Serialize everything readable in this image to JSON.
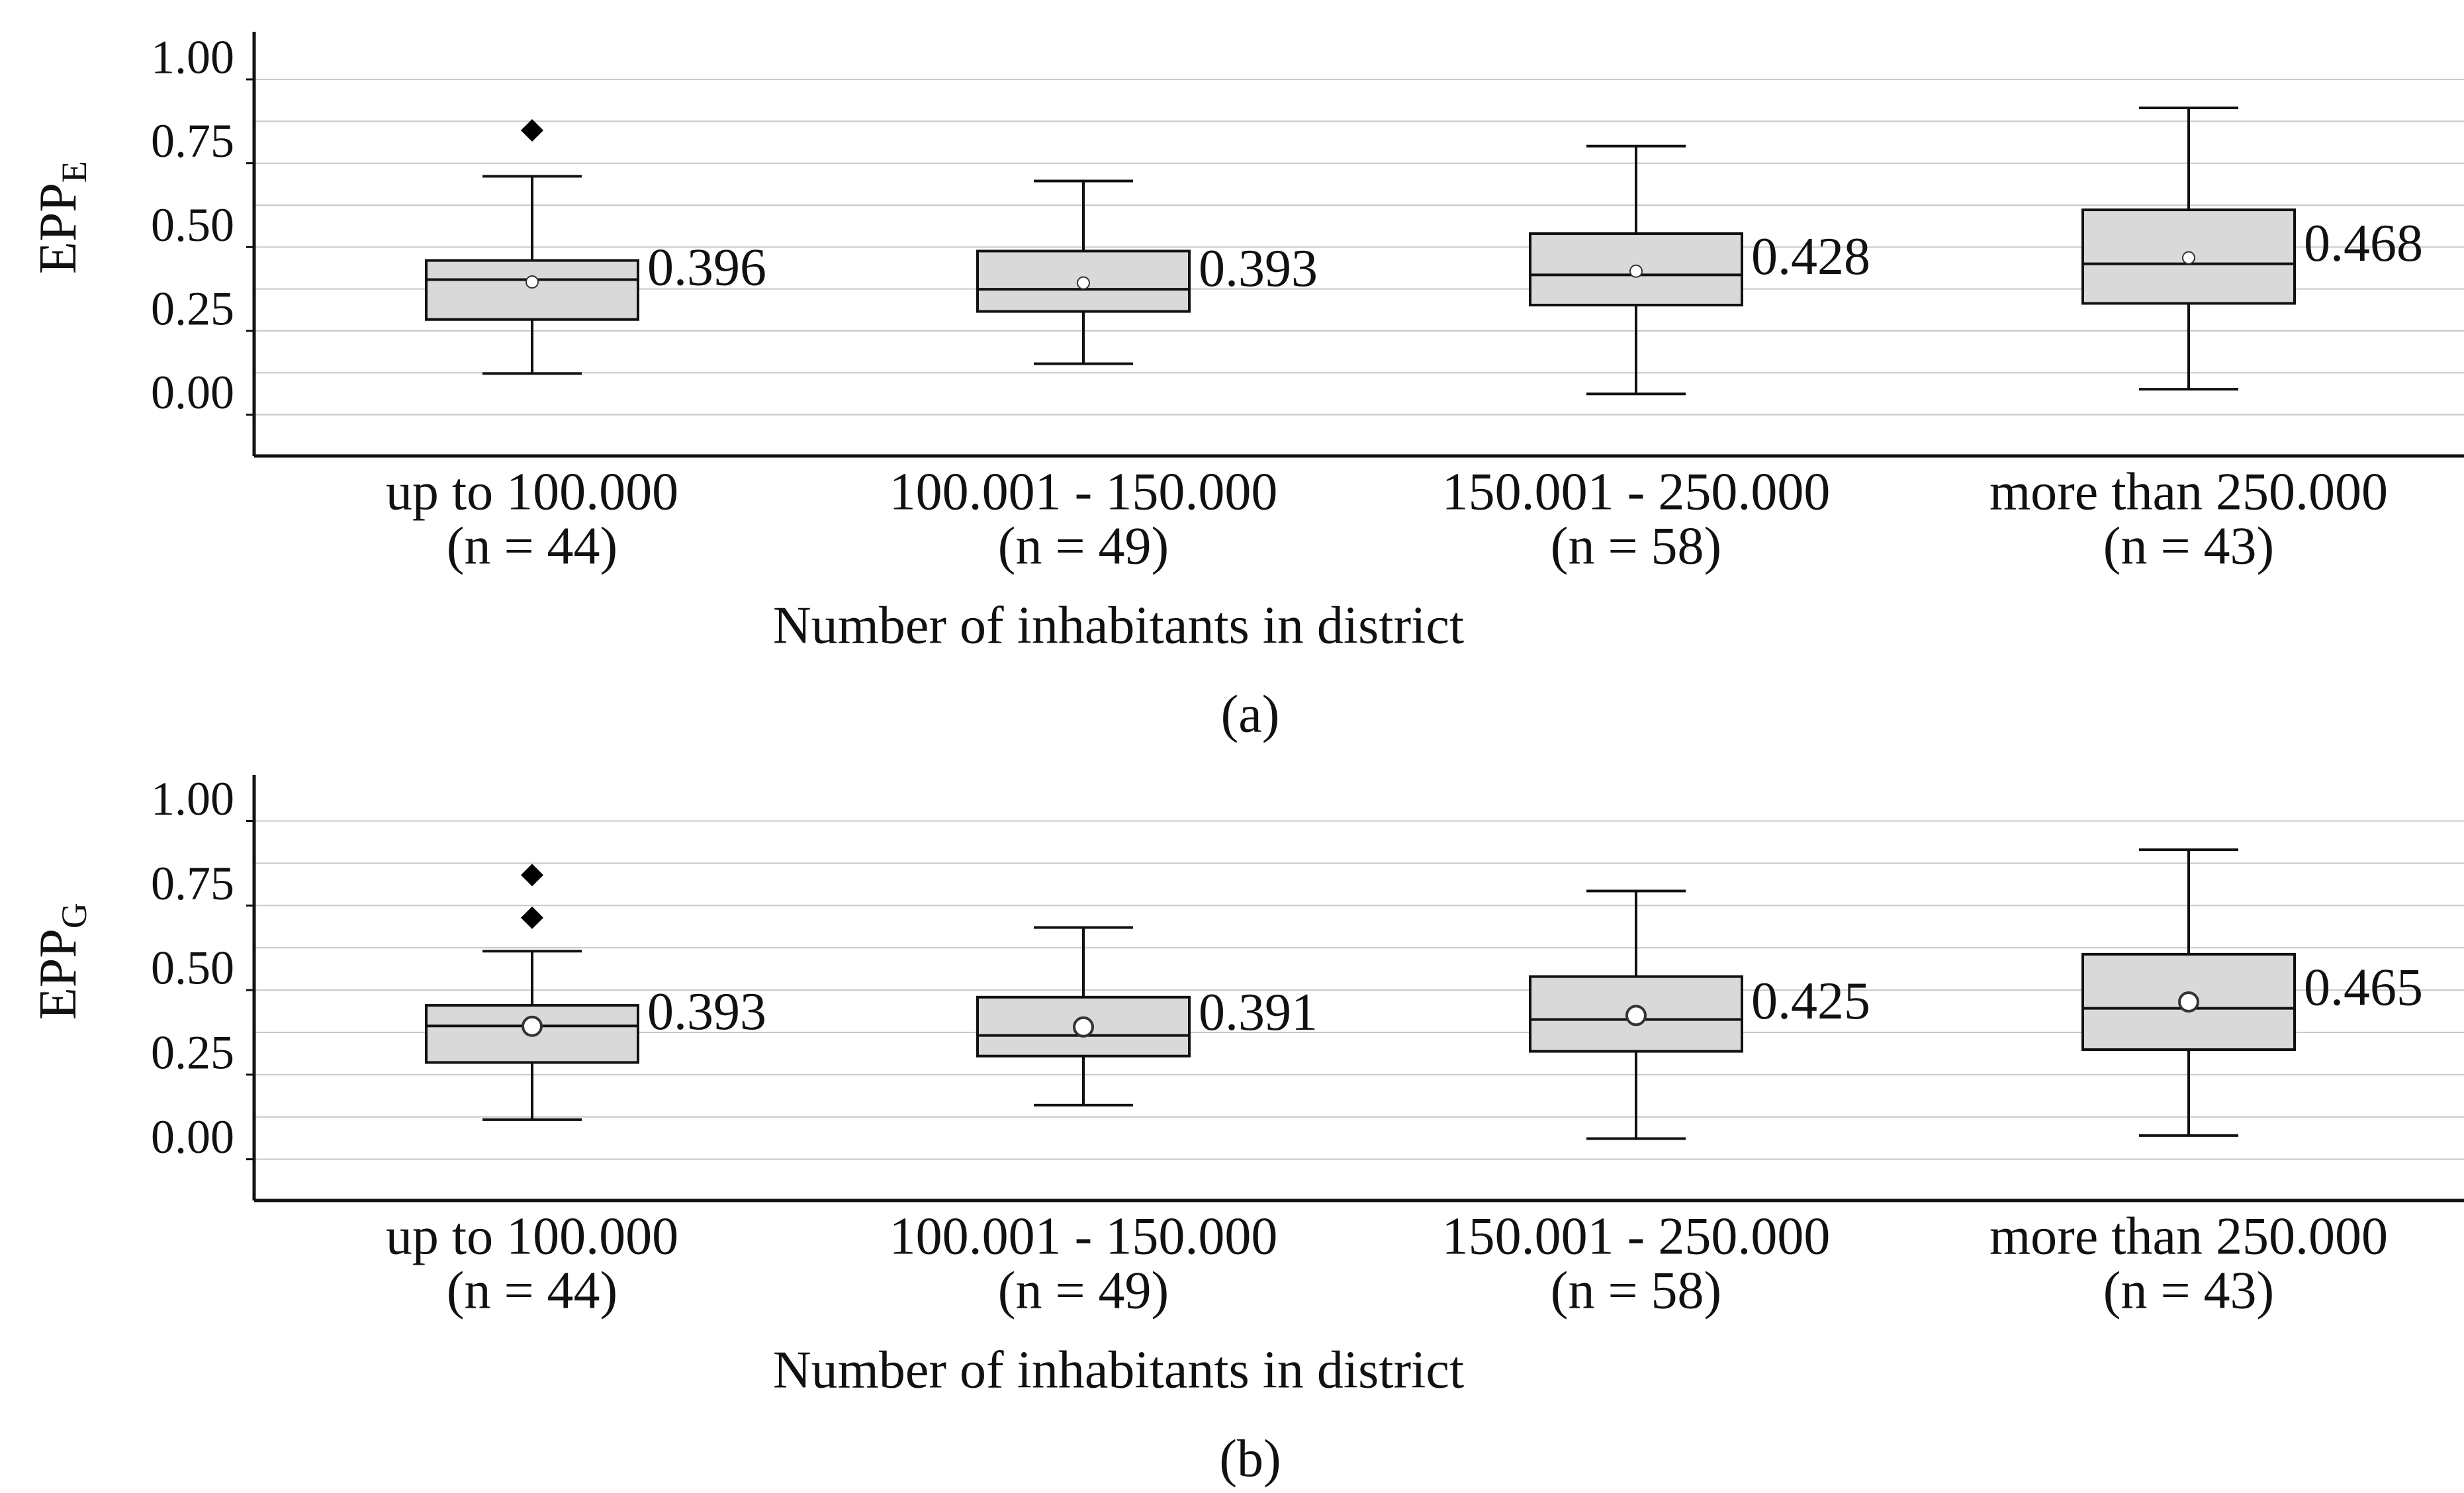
{
  "chart_data": [
    {
      "type": "box",
      "caption": "(a)",
      "ylabel": "EPP",
      "ylabel_subscript": "E",
      "xlabel": "Number of inhabitants in district",
      "categories": [
        "up to 100.000",
        "100.001 - 150.000",
        "150.001 - 250.000",
        "more than 250.000"
      ],
      "category_counts": [
        "(n = 44)",
        "(n = 49)",
        "(n = 58)",
        "(n = 43)"
      ],
      "whisker_low": [
        0.123,
        0.152,
        0.062,
        0.076
      ],
      "q1": [
        0.284,
        0.308,
        0.327,
        0.332
      ],
      "median": [
        0.403,
        0.374,
        0.417,
        0.45
      ],
      "q3": [
        0.46,
        0.488,
        0.54,
        0.611
      ],
      "whisker_high": [
        0.711,
        0.697,
        0.801,
        0.915
      ],
      "mean": [
        0.396,
        0.393,
        0.428,
        0.468
      ],
      "outliers": [
        [
          0.848
        ],
        [],
        [],
        []
      ],
      "ylim": [
        -0.123,
        1.142
      ],
      "yticks": [
        {
          "value": 0,
          "label": "0.00"
        },
        {
          "value": 0.25,
          "label": "0.25"
        },
        {
          "value": 0.5,
          "label": "0.50"
        },
        {
          "value": 0.75,
          "label": "0.75"
        },
        {
          "value": 1,
          "label": "1.00"
        }
      ],
      "gridlines": [
        0,
        0.125,
        0.25,
        0.375,
        0.5,
        0.625,
        0.75,
        0.875,
        1
      ],
      "box_color": "#d9d9d9"
    },
    {
      "type": "box",
      "caption": "(b)",
      "ylabel": "EPP",
      "ylabel_subscript": "G",
      "xlabel": "Number of inhabitants in district",
      "categories": [
        "up to 100.000",
        "100.001 - 150.000",
        "150.001 - 250.000",
        "more than 250.000"
      ],
      "category_counts": [
        "(n = 44)",
        "(n = 49)",
        "(n = 58)",
        "(n = 43)"
      ],
      "whisker_low": [
        0.117,
        0.16,
        0.061,
        0.07
      ],
      "q1": [
        0.286,
        0.305,
        0.319,
        0.324
      ],
      "median": [
        0.394,
        0.366,
        0.413,
        0.446
      ],
      "q3": [
        0.455,
        0.479,
        0.54,
        0.606
      ],
      "whisker_high": [
        0.615,
        0.685,
        0.793,
        0.915
      ],
      "mean": [
        0.393,
        0.391,
        0.425,
        0.465
      ],
      "outliers": [
        [
          0.84,
          0.714
        ],
        [],
        [],
        []
      ],
      "ylim": [
        -0.122,
        1.136
      ],
      "yticks": [
        {
          "value": 0,
          "label": "0.00"
        },
        {
          "value": 0.25,
          "label": "0.25"
        },
        {
          "value": 0.5,
          "label": "0.50"
        },
        {
          "value": 0.75,
          "label": "0.75"
        },
        {
          "value": 1,
          "label": "1.00"
        }
      ],
      "gridlines": [
        0,
        0.125,
        0.25,
        0.375,
        0.5,
        0.625,
        0.75,
        0.875,
        1
      ],
      "box_color": "#d9d9d9"
    }
  ]
}
